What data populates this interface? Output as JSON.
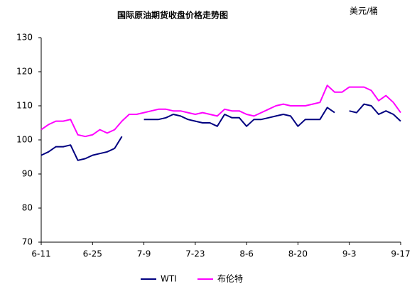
{
  "chart_data": {
    "type": "line",
    "title": "国际原油期货收盘价格走势图",
    "unit": "美元/桶",
    "categories": [
      "6-11",
      null,
      null,
      null,
      null,
      null,
      null,
      "6-25",
      null,
      null,
      null,
      null,
      null,
      null,
      "7-9",
      null,
      null,
      null,
      null,
      null,
      null,
      "7-23",
      null,
      null,
      null,
      null,
      null,
      null,
      "8-6",
      null,
      null,
      null,
      null,
      null,
      null,
      "8-20",
      null,
      null,
      null,
      null,
      null,
      null,
      "9-3",
      null,
      null,
      null,
      null,
      null,
      null,
      "9-17"
    ],
    "series": [
      {
        "name": "WTI",
        "color": "#000080",
        "values": [
          95.5,
          96.5,
          98,
          98,
          98.5,
          94,
          94.5,
          95.5,
          96,
          96.5,
          97.5,
          101,
          null,
          null,
          106,
          106,
          106,
          106.5,
          107.5,
          107,
          106,
          105.5,
          105,
          105,
          104,
          107.5,
          106.5,
          106.5,
          104,
          106,
          106,
          106.5,
          107,
          107.5,
          107,
          104,
          106,
          106,
          106,
          109.5,
          108,
          null,
          108.5,
          108,
          110.5,
          110,
          107.5,
          108.5,
          107.5,
          105.5
        ]
      },
      {
        "name": "布伦特",
        "color": "#ff00ff",
        "values": [
          103,
          104.5,
          105.5,
          105.5,
          106,
          101.5,
          101,
          101.5,
          103,
          102,
          103,
          105.5,
          107.5,
          107.5,
          108,
          108.5,
          109,
          109,
          108.5,
          108.5,
          108,
          107.5,
          108,
          107.5,
          107,
          109,
          108.5,
          108.5,
          107.5,
          107,
          108,
          109,
          110,
          110.5,
          110,
          110,
          110,
          110.5,
          111,
          116,
          114,
          114,
          115.5,
          115.5,
          115.5,
          114.5,
          111.5,
          113,
          111,
          108
        ]
      }
    ],
    "ylim": [
      70,
      130
    ],
    "yticks": [
      70,
      80,
      90,
      100,
      110,
      120,
      130
    ],
    "grid": false
  }
}
